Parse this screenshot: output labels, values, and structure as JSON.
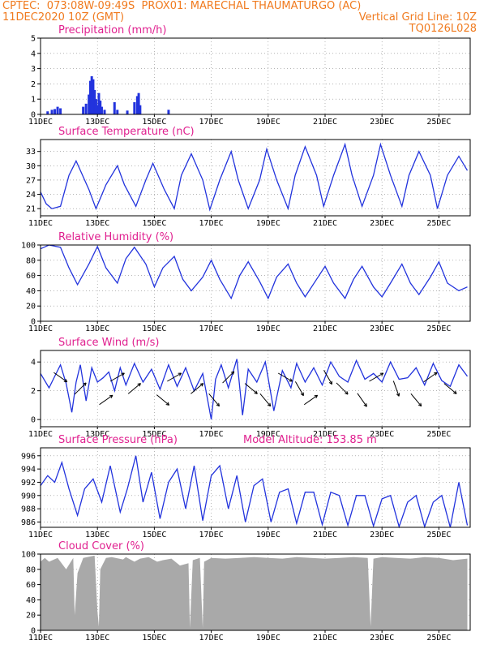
{
  "header": {
    "line1_left": "CPTEC:  073:08W-09:49S  PROX01: MARECHAL THAUMATURGO (AC)",
    "line2_left": "11DEC2020 10Z (GMT)",
    "line2_right": "Vertical Grid Line: 10Z",
    "line3_right": "TQ0126L028"
  },
  "colors": {
    "header": "#f07a1e",
    "title": "#e0208f",
    "series": "#2233dd",
    "cloud": "#a9a9a9"
  },
  "x_axis": {
    "tick_labels": [
      "11DEC",
      "13DEC",
      "15DEC",
      "17DEC",
      "19DEC",
      "21DEC",
      "23DEC",
      "25DEC"
    ],
    "tick_days": [
      0,
      2,
      4,
      6,
      8,
      10,
      12,
      14
    ],
    "range_days": [
      0,
      15.1
    ]
  },
  "panels": {
    "precip": {
      "title": "Precipitation  (mm/h)",
      "yticks": [
        "0",
        "1",
        "2",
        "3",
        "4",
        "5"
      ]
    },
    "temp": {
      "title": "Surface Temperature (nC)",
      "yticks": [
        "21",
        "24",
        "27",
        "30",
        "33"
      ]
    },
    "rh": {
      "title": "Relative Humidity (%)",
      "yticks": [
        "0",
        "20",
        "40",
        "60",
        "80",
        "100"
      ]
    },
    "wind": {
      "title": "Surface Wind  (m/s)",
      "yticks": [
        "0",
        "2",
        "4"
      ]
    },
    "pres": {
      "title": "Surface Pressure (hPa)",
      "extra": "Model Altitude: 153.85 m",
      "yticks": [
        "986",
        "988",
        "990",
        "992",
        "994",
        "996"
      ]
    },
    "cloud": {
      "title": "Cloud Cover (%)",
      "yticks": [
        "0",
        "20",
        "40",
        "60",
        "80",
        "100"
      ]
    }
  },
  "chart_data": [
    {
      "type": "bar",
      "title": "Precipitation  (mm/h)",
      "ylim": [
        0,
        5
      ],
      "x": [
        0.25,
        0.4,
        0.5,
        0.6,
        0.7,
        1.5,
        1.6,
        1.7,
        1.75,
        1.8,
        1.85,
        1.9,
        1.95,
        2.0,
        2.05,
        2.1,
        2.15,
        2.25,
        2.6,
        2.7,
        3.05,
        3.3,
        3.4,
        3.45,
        3.5,
        4.5
      ],
      "values": [
        0.2,
        0.3,
        0.35,
        0.5,
        0.4,
        0.5,
        0.7,
        1.3,
        2.2,
        2.5,
        2.3,
        1.6,
        1.0,
        0.6,
        1.4,
        0.9,
        0.5,
        0.3,
        0.8,
        0.3,
        0.25,
        0.8,
        1.2,
        1.4,
        0.6,
        0.3
      ]
    },
    {
      "type": "line",
      "title": "Surface Temperature (nC)",
      "ylim": [
        19.5,
        35.5
      ],
      "x": [
        0,
        0.2,
        0.4,
        0.7,
        1.0,
        1.25,
        1.7,
        1.95,
        2.3,
        2.7,
        2.95,
        3.35,
        3.7,
        3.95,
        4.35,
        4.7,
        4.95,
        5.3,
        5.7,
        5.95,
        6.3,
        6.7,
        6.95,
        7.3,
        7.7,
        7.95,
        8.3,
        8.7,
        8.95,
        9.3,
        9.7,
        9.95,
        10.3,
        10.7,
        10.95,
        11.3,
        11.7,
        11.95,
        12.3,
        12.7,
        12.95,
        13.3,
        13.7,
        13.95,
        14.3,
        14.7,
        15.0
      ],
      "y": [
        24.5,
        22,
        21,
        21.5,
        28,
        31,
        25,
        21,
        26,
        30,
        26,
        21.5,
        27,
        30.5,
        25,
        21,
        28,
        32.5,
        27,
        20.8,
        27,
        33,
        27,
        21,
        27,
        33.5,
        27,
        21,
        28,
        34,
        28,
        21.5,
        28,
        34.5,
        28,
        21.5,
        28,
        34.5,
        28,
        21.5,
        28,
        33,
        28,
        21,
        28,
        32,
        29
      ]
    },
    {
      "type": "line",
      "title": "Relative Humidity (%)",
      "ylim": [
        0,
        100
      ],
      "x": [
        0,
        0.3,
        0.7,
        1.0,
        1.3,
        1.7,
        2.0,
        2.3,
        2.7,
        3.0,
        3.3,
        3.7,
        4.0,
        4.3,
        4.7,
        5.0,
        5.3,
        5.7,
        6.0,
        6.3,
        6.7,
        7.0,
        7.3,
        7.7,
        8.0,
        8.3,
        8.7,
        9.0,
        9.3,
        9.7,
        10.0,
        10.3,
        10.7,
        11.0,
        11.3,
        11.7,
        12.0,
        12.3,
        12.7,
        13.0,
        13.3,
        13.7,
        14.0,
        14.3,
        14.7,
        15.0
      ],
      "y": [
        95,
        100,
        97,
        70,
        48,
        75,
        98,
        70,
        50,
        82,
        97,
        75,
        45,
        70,
        85,
        55,
        40,
        58,
        80,
        55,
        30,
        60,
        78,
        52,
        30,
        58,
        75,
        50,
        32,
        55,
        72,
        50,
        30,
        55,
        72,
        45,
        32,
        50,
        75,
        50,
        35,
        58,
        78,
        50,
        40,
        45
      ]
    },
    {
      "type": "line",
      "title": "Surface Wind  (m/s)",
      "ylim": [
        -0.5,
        4.8
      ],
      "x": [
        0,
        0.3,
        0.5,
        0.7,
        0.9,
        1.1,
        1.25,
        1.4,
        1.6,
        1.8,
        2.0,
        2.2,
        2.4,
        2.6,
        2.8,
        3.0,
        3.3,
        3.6,
        3.9,
        4.2,
        4.5,
        4.8,
        5.1,
        5.4,
        5.7,
        6.0,
        6.15,
        6.35,
        6.6,
        6.9,
        7.1,
        7.3,
        7.6,
        7.9,
        8.2,
        8.5,
        8.8,
        9.0,
        9.3,
        9.6,
        9.9,
        10.2,
        10.5,
        10.8,
        11.1,
        11.4,
        11.7,
        12.0,
        12.3,
        12.6,
        12.9,
        13.2,
        13.5,
        13.8,
        14.1,
        14.4,
        14.7,
        15.0
      ],
      "y": [
        3.2,
        2.2,
        3.0,
        3.8,
        2.5,
        0.5,
        2.6,
        3.8,
        1.3,
        3.6,
        2.6,
        2.9,
        3.3,
        2.0,
        3.6,
        2.4,
        3.9,
        2.6,
        3.5,
        2.1,
        3.8,
        2.3,
        3.6,
        2.0,
        3.2,
        0.0,
        2.8,
        3.8,
        2.2,
        4.2,
        0.3,
        3.5,
        2.6,
        4.0,
        0.6,
        3.4,
        2.2,
        3.9,
        2.6,
        3.6,
        2.4,
        4.0,
        3.0,
        2.6,
        4.1,
        2.8,
        3.2,
        2.6,
        4.0,
        2.8,
        2.9,
        3.6,
        2.4,
        3.9,
        2.7,
        2.3,
        3.8,
        3.0
      ]
    },
    {
      "type": "line",
      "title": "Surface Pressure (hPa)",
      "ylim": [
        985.2,
        997.2
      ],
      "x": [
        0,
        0.25,
        0.5,
        0.75,
        1.0,
        1.3,
        1.55,
        1.85,
        2.15,
        2.45,
        2.8,
        3.05,
        3.35,
        3.6,
        3.9,
        4.2,
        4.5,
        4.8,
        5.1,
        5.4,
        5.7,
        6.0,
        6.3,
        6.6,
        6.9,
        7.2,
        7.5,
        7.8,
        8.1,
        8.4,
        8.7,
        9.0,
        9.3,
        9.6,
        9.9,
        10.2,
        10.5,
        10.8,
        11.1,
        11.4,
        11.7,
        12.0,
        12.3,
        12.6,
        12.9,
        13.2,
        13.5,
        13.8,
        14.1,
        14.4,
        14.7,
        15.0
      ],
      "y": [
        991.5,
        993,
        992,
        995,
        991,
        987,
        991,
        992.5,
        989,
        994.5,
        987.5,
        991,
        996,
        989,
        993.5,
        986.5,
        992,
        994,
        988,
        994.5,
        986.2,
        993,
        994.5,
        988,
        993,
        986,
        991.5,
        992.5,
        986,
        990.5,
        991,
        985.8,
        990.5,
        990.5,
        985.6,
        990.5,
        990,
        985.5,
        990,
        990,
        985.4,
        989.5,
        990,
        985.3,
        989,
        990,
        985.3,
        989,
        990,
        985.2,
        992,
        985.5
      ]
    },
    {
      "type": "area",
      "title": "Cloud Cover (%)",
      "ylim": [
        0,
        100
      ],
      "x": [
        0,
        0.15,
        0.3,
        0.6,
        0.9,
        1.15,
        1.2,
        1.3,
        1.5,
        1.9,
        2.0,
        2.05,
        2.1,
        2.3,
        2.5,
        2.9,
        3.0,
        3.3,
        3.5,
        3.8,
        4.1,
        4.3,
        4.6,
        4.9,
        5.2,
        5.25,
        5.35,
        5.6,
        5.7,
        5.75,
        6.0,
        6.5,
        7.0,
        7.5,
        8.0,
        8.5,
        9.0,
        9.5,
        10.0,
        10.5,
        11.0,
        11.5,
        11.6,
        11.7,
        12.0,
        12.5,
        13.0,
        13.5,
        14.0,
        14.5,
        15.0
      ],
      "y": [
        90,
        95,
        90,
        95,
        80,
        95,
        20,
        75,
        95,
        98,
        25,
        5,
        80,
        95,
        96,
        93,
        96,
        90,
        94,
        96,
        90,
        92,
        94,
        85,
        88,
        3,
        92,
        95,
        3,
        90,
        95,
        94,
        95,
        96,
        95,
        94,
        96,
        95,
        94,
        95,
        96,
        95,
        5,
        94,
        96,
        95,
        94,
        96,
        95,
        92,
        94
      ]
    }
  ]
}
